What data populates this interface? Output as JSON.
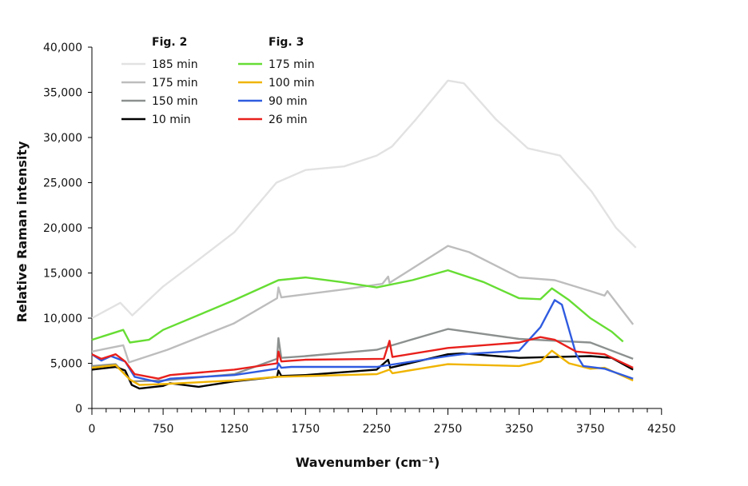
{
  "chart_data": {
    "type": "line",
    "title": "",
    "xlabel": "Wavenumber (cm⁻¹)",
    "ylabel": "Relative Raman intensity",
    "xlim": [
      0,
      4250
    ],
    "ylim": [
      0,
      40000
    ],
    "xticks": [
      "0",
      "750",
      "1250",
      "1750",
      "2250",
      "2750",
      "3250",
      "3750",
      "4250"
    ],
    "yticks": [
      "0",
      "5,000",
      "10,000",
      "15,000",
      "20,000",
      "25,000",
      "30,000",
      "35,000",
      "40,000"
    ],
    "grid": false,
    "legend_position": "top-left",
    "legend_groups": [
      {
        "title": "Fig. 2",
        "series": [
          0,
          1,
          2,
          3
        ]
      },
      {
        "title": "Fig. 3",
        "series": [
          4,
          5,
          6,
          7
        ]
      }
    ],
    "series": [
      {
        "name": "185 min",
        "color": "#e2e2e2",
        "x": [
          0,
          300,
          425,
          750,
          960,
          1250,
          1546,
          1750,
          2020,
          2250,
          2357,
          2525,
          2750,
          2862,
          3088,
          3312,
          3537,
          3760,
          3930,
          4070
        ],
        "y": [
          10000,
          11700,
          10300,
          13500,
          16000,
          19500,
          25000,
          26400,
          26800,
          28000,
          29000,
          32000,
          36300,
          36000,
          32000,
          28800,
          28000,
          24000,
          20000,
          17800
        ]
      },
      {
        "name": "175 min",
        "color": "#bdbdbd",
        "x": [
          0,
          330,
          390,
          780,
          1245,
          1550,
          1560,
          1580,
          2030,
          2290,
          2330,
          2340,
          2500,
          2750,
          2900,
          3250,
          3500,
          3750,
          3850,
          3870,
          4050
        ],
        "y": [
          6300,
          7000,
          5100,
          6500,
          9400,
          12200,
          13400,
          12300,
          13200,
          13800,
          14600,
          13900,
          15500,
          18000,
          17300,
          14500,
          14200,
          13000,
          12500,
          13000,
          9300
        ]
      },
      {
        "name": "150 min",
        "color": "#8c918f",
        "x": [
          0,
          250,
          420,
          750,
          1250,
          1550,
          1560,
          1580,
          1750,
          2250,
          2750,
          3250,
          3500,
          3750,
          4050
        ],
        "y": [
          4700,
          4900,
          3000,
          3100,
          3800,
          5500,
          7800,
          5600,
          5800,
          6500,
          8800,
          7700,
          7500,
          7300,
          5500
        ]
      },
      {
        "name": "10 min",
        "color": "#000000",
        "x": [
          0,
          250,
          350,
          420,
          500,
          750,
          800,
          1000,
          1250,
          1550,
          1560,
          1580,
          1750,
          2250,
          2330,
          2345,
          2750,
          2850,
          3250,
          3500,
          3750,
          3900,
          4050
        ],
        "y": [
          4300,
          4600,
          4200,
          2600,
          2200,
          2500,
          2800,
          2400,
          3000,
          3500,
          4200,
          3600,
          3700,
          4300,
          5400,
          4500,
          6000,
          6100,
          5600,
          5700,
          5800,
          5600,
          4300
        ]
      },
      {
        "name": "175 min",
        "color": "#66dd33",
        "x": [
          0,
          330,
          400,
          600,
          750,
          1250,
          1560,
          1750,
          2000,
          2250,
          2500,
          2750,
          3000,
          3250,
          3400,
          3480,
          3600,
          3750,
          3900,
          3980
        ],
        "y": [
          7600,
          8700,
          7300,
          7600,
          8700,
          12000,
          14200,
          14500,
          14000,
          13400,
          14200,
          15300,
          14000,
          12200,
          12100,
          13300,
          12000,
          10000,
          8500,
          7400
        ]
      },
      {
        "name": "100 min",
        "color": "#f0b400",
        "x": [
          0,
          250,
          400,
          500,
          750,
          1250,
          1550,
          2250,
          2340,
          2360,
          2750,
          3250,
          3400,
          3480,
          3600,
          3750,
          3850,
          4050
        ],
        "y": [
          4500,
          4800,
          3200,
          2600,
          2700,
          3100,
          3500,
          3800,
          4300,
          3900,
          4900,
          4700,
          5200,
          6400,
          5000,
          4400,
          4500,
          3100
        ]
      },
      {
        "name": "90 min",
        "color": "#2f5be0",
        "x": [
          0,
          100,
          200,
          350,
          450,
          700,
          800,
          1250,
          1550,
          1560,
          1580,
          1650,
          2250,
          2750,
          2850,
          3250,
          3400,
          3500,
          3550,
          3650,
          3700,
          3850,
          4050
        ],
        "y": [
          6000,
          5300,
          5800,
          5200,
          3500,
          2900,
          3300,
          3700,
          4400,
          5000,
          4500,
          4600,
          4600,
          5800,
          6000,
          6400,
          9000,
          12000,
          11500,
          6000,
          4700,
          4400,
          3300
        ]
      },
      {
        "name": "26 min",
        "color": "#e8201c",
        "x": [
          0,
          100,
          250,
          350,
          450,
          700,
          800,
          1250,
          1550,
          1560,
          1580,
          1750,
          2300,
          2340,
          2360,
          2750,
          3250,
          3400,
          3500,
          3650,
          3850,
          4050
        ],
        "y": [
          6000,
          5500,
          6000,
          5200,
          3800,
          3300,
          3700,
          4300,
          5000,
          6300,
          5200,
          5400,
          5500,
          7500,
          5700,
          6700,
          7300,
          7900,
          7600,
          6300,
          6000,
          4500
        ]
      }
    ]
  }
}
